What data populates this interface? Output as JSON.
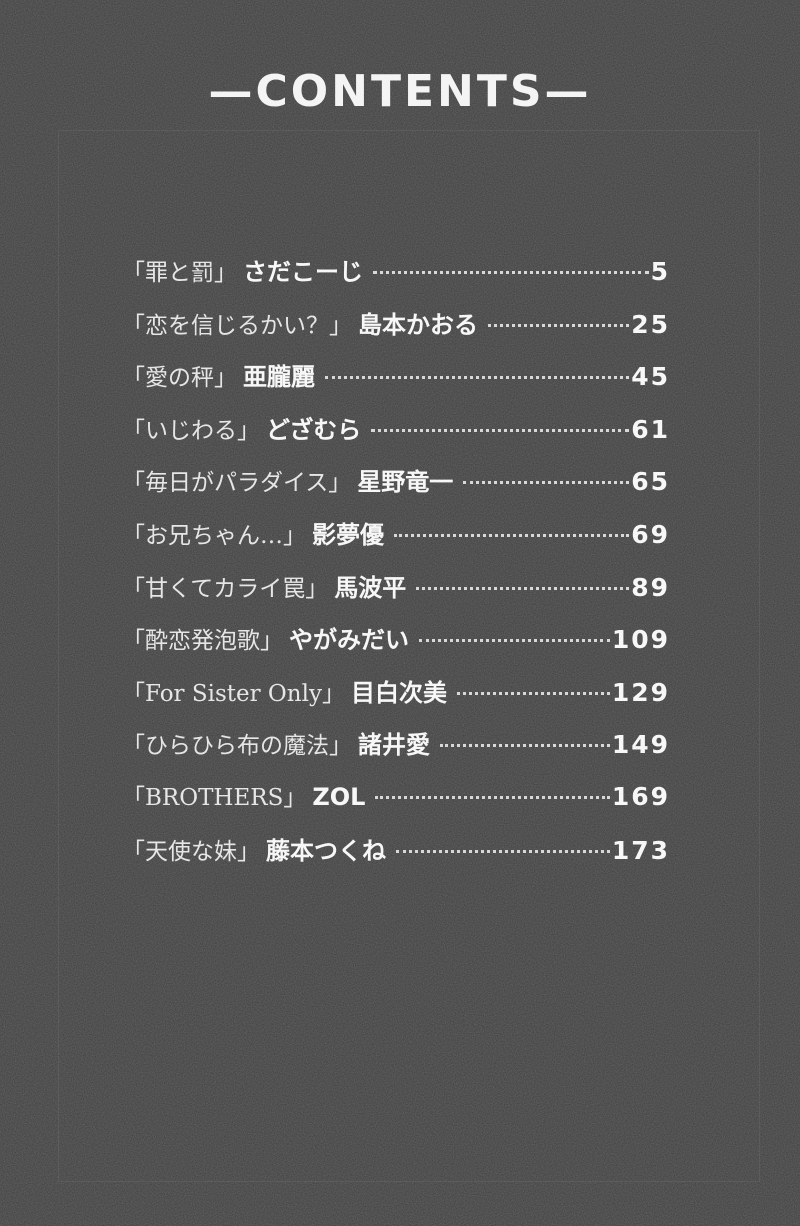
{
  "title": "—CONTENTS—",
  "entries": [
    {
      "work": "「罪と罰」",
      "author": "さだこーじ",
      "page": "5"
    },
    {
      "work": "「恋を信じるかい？」",
      "author": "島本かおる",
      "page": "25"
    },
    {
      "work": "「愛の秤」",
      "author": "亜朧麗",
      "page": "45"
    },
    {
      "work": "「いじわる」",
      "author": "どざむら",
      "page": "61"
    },
    {
      "work": "「毎日がパラダイス」",
      "author": "星野竜一",
      "page": "65"
    },
    {
      "work": "「お兄ちゃん…」",
      "author": "影夢優",
      "page": "69"
    },
    {
      "work": "「甘くてカライ罠」",
      "author": "馬波平",
      "page": "89"
    },
    {
      "work": "「酔恋発泡歌」",
      "author": "やがみだい",
      "page": "109"
    },
    {
      "work": "「For Sister Only」",
      "author": "目白次美",
      "page": "129"
    },
    {
      "work": "「ひらひら布の魔法」",
      "author": "諸井愛",
      "page": "149"
    },
    {
      "work": "「BROTHERS」",
      "author": "ZOL",
      "page": "169"
    },
    {
      "work": "「天使な妹」",
      "author": "藤本つくね",
      "page": "173"
    }
  ]
}
